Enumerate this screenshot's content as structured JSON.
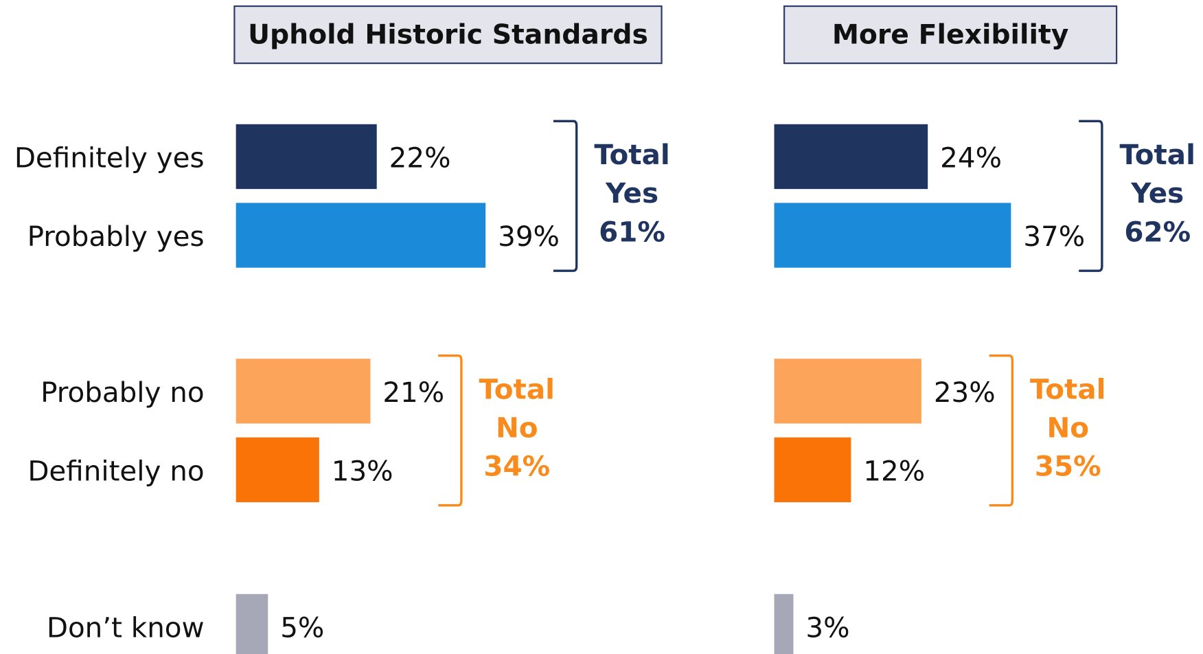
{
  "chart_data": [
    {
      "type": "bar",
      "title": "Uphold Historic Standards",
      "categories": [
        "Definitely yes",
        "Probably yes",
        "Probably no",
        "Definitely no",
        "Don’t know"
      ],
      "values": [
        22,
        39,
        21,
        13,
        5
      ],
      "value_labels": [
        "22%",
        "39%",
        "21%",
        "13%",
        "5%"
      ],
      "colors": [
        "#1f3560",
        "#1b8ad9",
        "#fba45a",
        "#f97306",
        "#a6a8b7"
      ],
      "totals": [
        {
          "lines": [
            "Total",
            "Yes"
          ],
          "value": 61,
          "value_label": "61%",
          "color": "#1f3560"
        },
        {
          "lines": [
            "Total",
            "No"
          ],
          "value": 34,
          "value_label": "34%",
          "color": "#f98a1c"
        }
      ]
    },
    {
      "type": "bar",
      "title": "More Flexibility",
      "values": [
        24,
        37,
        23,
        12,
        3
      ],
      "value_labels": [
        "24%",
        "37%",
        "23%",
        "12%",
        "3%"
      ],
      "colors": [
        "#1f3560",
        "#1b8ad9",
        "#fba45a",
        "#f97306",
        "#a6a8b7"
      ],
      "totals": [
        {
          "lines": [
            "Total",
            "Yes"
          ],
          "value": 62,
          "value_label": "62%",
          "color": "#1f3560"
        },
        {
          "lines": [
            "Total",
            "No"
          ],
          "value": 35,
          "value_label": "35%",
          "color": "#f98a1c"
        }
      ]
    }
  ]
}
